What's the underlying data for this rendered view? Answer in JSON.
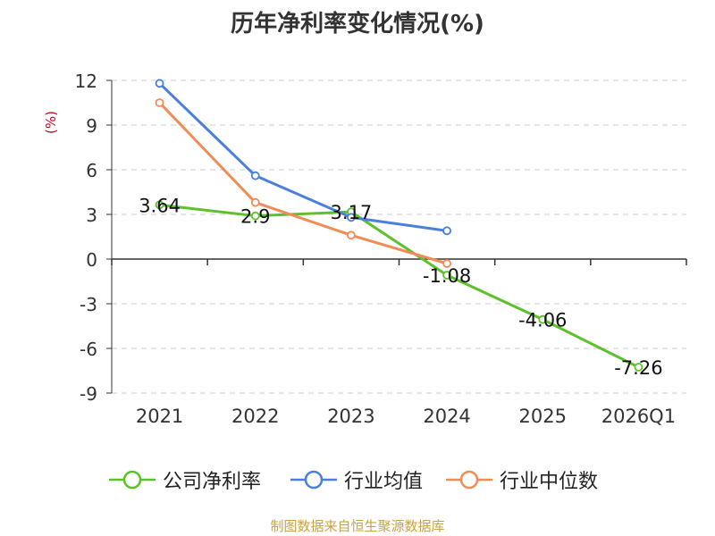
{
  "chart_data": {
    "type": "line",
    "title": "历年净利率变化情况(%)",
    "ylabel": "(%)",
    "categories": [
      "2021",
      "2022",
      "2023",
      "2024",
      "2025",
      "2026Q1"
    ],
    "ylim": [
      -9,
      12
    ],
    "yticks": [
      12,
      9,
      6,
      3,
      0,
      -3,
      -6,
      -9
    ],
    "ytick_labels": [
      "12",
      "9",
      "6",
      "3",
      "0",
      "-3",
      "-6",
      "-9"
    ],
    "grid": true,
    "legend_position": "bottom",
    "series": [
      {
        "name": "公司净利率",
        "color": "#5cc12a",
        "values": [
          3.64,
          2.9,
          3.17,
          -1.08,
          -4.06,
          -7.26
        ],
        "data_labels": [
          "3.64",
          "2.9",
          "3.17",
          "-1.08",
          "-4.06",
          "-7.26"
        ]
      },
      {
        "name": "行业均值",
        "color": "#4a7fdb",
        "values": [
          11.8,
          5.6,
          2.8,
          1.9,
          null,
          null
        ]
      },
      {
        "name": "行业中位数",
        "color": "#f08c55",
        "values": [
          10.5,
          3.8,
          1.6,
          -0.3,
          null,
          null
        ]
      }
    ]
  },
  "source_text": "制图数据来自恒生聚源数据库"
}
